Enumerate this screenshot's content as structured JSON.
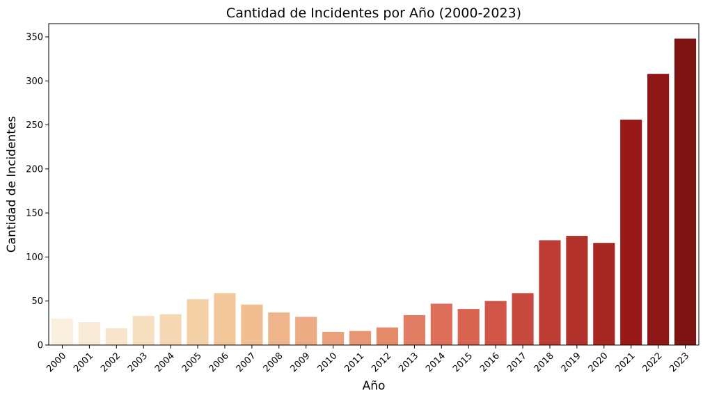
{
  "chart_data": {
    "type": "bar",
    "title": "Cantidad de Incidentes por Año (2000-2023)",
    "xlabel": "Año",
    "ylabel": "Cantidad de Incidentes",
    "categories": [
      "2000",
      "2001",
      "2002",
      "2003",
      "2004",
      "2005",
      "2006",
      "2007",
      "2008",
      "2009",
      "2010",
      "2011",
      "2012",
      "2013",
      "2014",
      "2015",
      "2016",
      "2017",
      "2018",
      "2019",
      "2020",
      "2021",
      "2022",
      "2023"
    ],
    "values": [
      30,
      26,
      19,
      33,
      35,
      52,
      59,
      46,
      37,
      32,
      15,
      16,
      20,
      34,
      47,
      41,
      50,
      59,
      119,
      124,
      116,
      256,
      308,
      348
    ],
    "ylim": [
      0,
      365
    ],
    "yticks": [
      0,
      50,
      100,
      150,
      200,
      250,
      300,
      350
    ],
    "grid": false,
    "legend": "none",
    "colors": [
      "#fbefe0",
      "#f9ebd6",
      "#f8e5cb",
      "#f5dfbf",
      "#f5d8b3",
      "#f3d0a6",
      "#f2c89b",
      "#f0be91",
      "#eeb58b",
      "#ecab82",
      "#eaa07a",
      "#e89673",
      "#e68b6a",
      "#e17d62",
      "#dd6f5a",
      "#d86351",
      "#d15546",
      "#c84a3e",
      "#bd3c33",
      "#b2322b",
      "#a62722",
      "#991919",
      "#8e1616",
      "#7e1313"
    ]
  }
}
